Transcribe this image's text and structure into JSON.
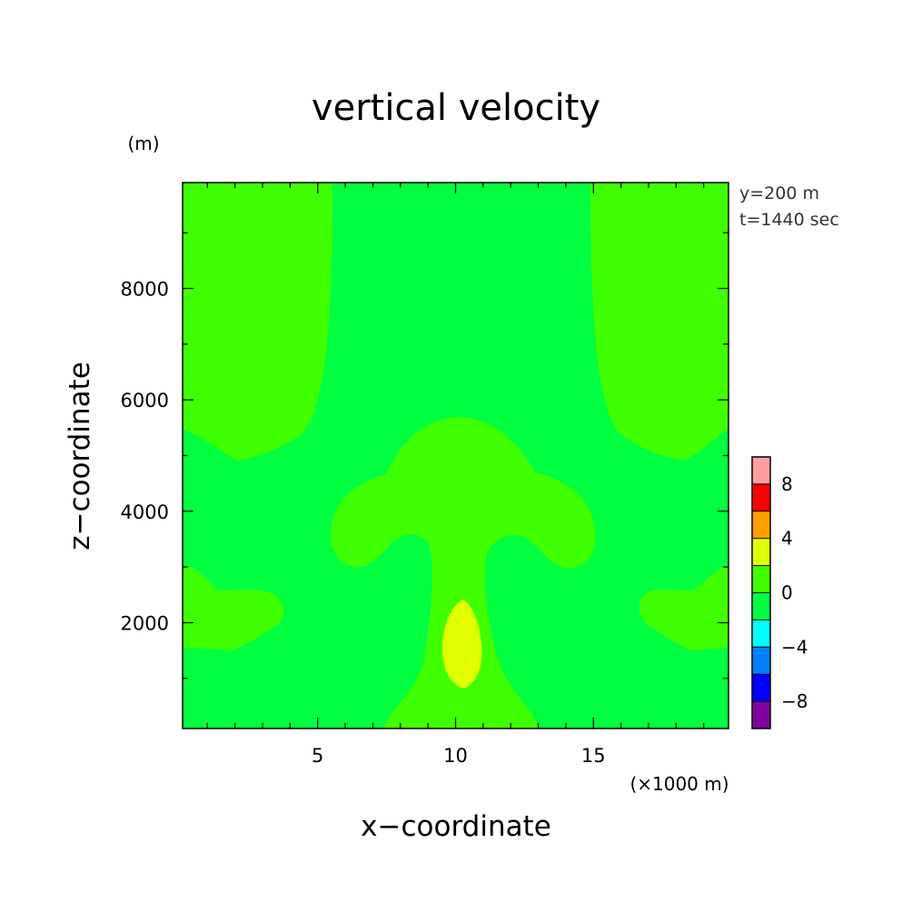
{
  "chart_data": {
    "type": "heatmap",
    "title": "vertical velocity",
    "xlabel": "x−coordinate",
    "ylabel": "z−coordinate",
    "x_unit": "(×1000 m)",
    "y_unit": "(m)",
    "xlim": [
      0.1,
      19.9
    ],
    "ylim": [
      100,
      9900
    ],
    "x_ticks": [
      5,
      10,
      15
    ],
    "x_tick_labels": [
      "5",
      "10",
      "15"
    ],
    "y_ticks": [
      2000,
      4000,
      6000,
      8000
    ],
    "y_tick_labels": [
      "2000",
      "4000",
      "6000",
      "8000"
    ],
    "annotations": [
      "y=200 m",
      "t=1440 sec"
    ],
    "colorbar": {
      "levels": [
        -10,
        -8,
        -6,
        -4,
        -2,
        0,
        2,
        4,
        6,
        8,
        10
      ],
      "colors": [
        "#8000a0",
        "#0000ff",
        "#0080ff",
        "#00ffff",
        "#00ff40",
        "#40ff00",
        "#e0ff00",
        "#ffa000",
        "#ff0000",
        "#ffa0a0"
      ],
      "tick_values": [
        -8,
        -4,
        0,
        4,
        8
      ],
      "tick_labels": [
        "−8",
        "−4",
        "0",
        "4",
        "8"
      ]
    },
    "regions": [
      {
        "name": "background",
        "level_range": [
          -2,
          0
        ],
        "color": "#00ff40"
      },
      {
        "name": "upper-left-plume",
        "level_range": [
          0,
          2
        ],
        "color": "#40ff00"
      },
      {
        "name": "upper-right-plume",
        "level_range": [
          0,
          2
        ],
        "color": "#40ff00"
      },
      {
        "name": "central-mushroom",
        "level_range": [
          0,
          2
        ],
        "color": "#40ff00"
      },
      {
        "name": "central-core",
        "level_range": [
          2,
          4
        ],
        "color": "#e0ff00"
      },
      {
        "name": "left-lobe",
        "level_range": [
          0,
          2
        ],
        "color": "#40ff00"
      },
      {
        "name": "right-lobe",
        "level_range": [
          0,
          2
        ],
        "color": "#40ff00"
      }
    ]
  }
}
